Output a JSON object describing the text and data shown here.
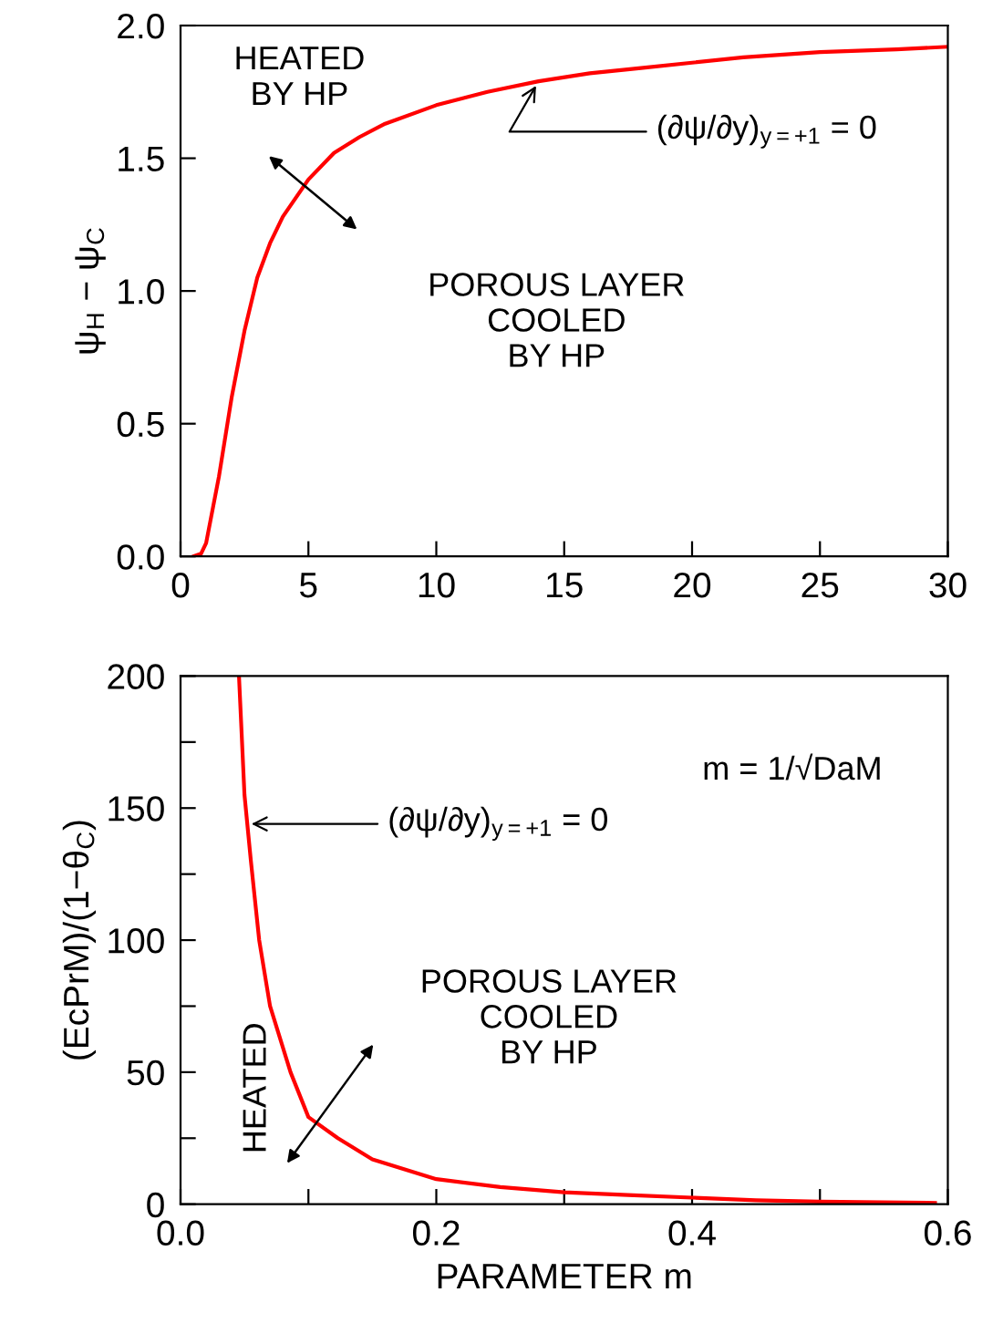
{
  "chart_data": [
    {
      "type": "line",
      "ylabel": "ψ$_{H}$ − ψ$_{C}$",
      "x": [
        0.5,
        0.8,
        1,
        1.5,
        2,
        2.5,
        3,
        3.5,
        4,
        5,
        6,
        7,
        8,
        10,
        12,
        14,
        16,
        18,
        20,
        22,
        25,
        28,
        30
      ],
      "series": [
        {
          "color": "#ff0000",
          "values": [
            0,
            0.01,
            0.05,
            0.3,
            0.6,
            0.85,
            1.05,
            1.18,
            1.28,
            1.42,
            1.52,
            1.58,
            1.63,
            1.7,
            1.75,
            1.79,
            1.82,
            1.84,
            1.86,
            1.88,
            1.9,
            1.91,
            1.92
          ]
        }
      ],
      "xlim": [
        0,
        30
      ],
      "ylim": [
        0,
        2
      ],
      "xticks": [
        0,
        5,
        10,
        15,
        20,
        25,
        30
      ],
      "yticks": [
        {
          "value": 0,
          "label": "0.0"
        },
        0.5,
        {
          "value": 1,
          "label": "1.0"
        },
        1.5,
        {
          "value": 2,
          "label": "2.0"
        }
      ],
      "annotations": [
        "HEATED\nBY HP",
        "POROUS LAYER\nCOOLED\nBY HP",
        {
          "text": "(∂ψ/∂y)$_{y=+1}$ = 0",
          "x": 14,
          "y": 1.79
        }
      ],
      "grid": false,
      "legend": false,
      "marker": "none",
      "line_style": "solid"
    },
    {
      "type": "line",
      "xlabel": "PARAMETER m",
      "ylabel": "(EcPrM)/(1−θ$_{C}$)",
      "x": [
        0.0457,
        0.05,
        0.055,
        0.0615,
        0.07,
        0.086,
        0.1,
        0.123,
        0.15,
        0.2,
        0.25,
        0.3,
        0.35,
        0.4,
        0.45,
        0.5,
        0.55,
        0.59
      ],
      "series": [
        {
          "color": "#ff0000",
          "values": [
            200,
            155,
            130,
            100,
            75,
            50,
            33,
            25,
            17,
            9.5,
            6.5,
            4.5,
            3.5,
            2.5,
            1.5,
            1,
            0.7,
            0.5
          ]
        }
      ],
      "xlim": [
        0,
        0.6
      ],
      "ylim": [
        0,
        200
      ],
      "xticks": [
        {
          "value": 0,
          "label": "0.0"
        },
        {
          "value": 0.1,
          "label": null
        },
        0.2,
        {
          "value": 0.3,
          "label": null
        },
        0.4,
        {
          "value": 0.5,
          "label": null
        },
        0.6
      ],
      "yticks": [
        0,
        {
          "value": 25,
          "label": null
        },
        50,
        {
          "value": 75,
          "label": null
        },
        100,
        {
          "value": 125,
          "label": null
        },
        150,
        {
          "value": 175,
          "label": null
        },
        200
      ],
      "annotations": [
        "HEATED",
        "POROUS LAYER\nCOOLED\nBY HP",
        {
          "text": "(∂ψ/∂y)$_{y=+1}$ = 0",
          "x": 0.052,
          "y": 143
        },
        "m = 1/√DaM"
      ],
      "grid": false,
      "legend": false,
      "marker": "none",
      "line_style": "solid"
    }
  ]
}
